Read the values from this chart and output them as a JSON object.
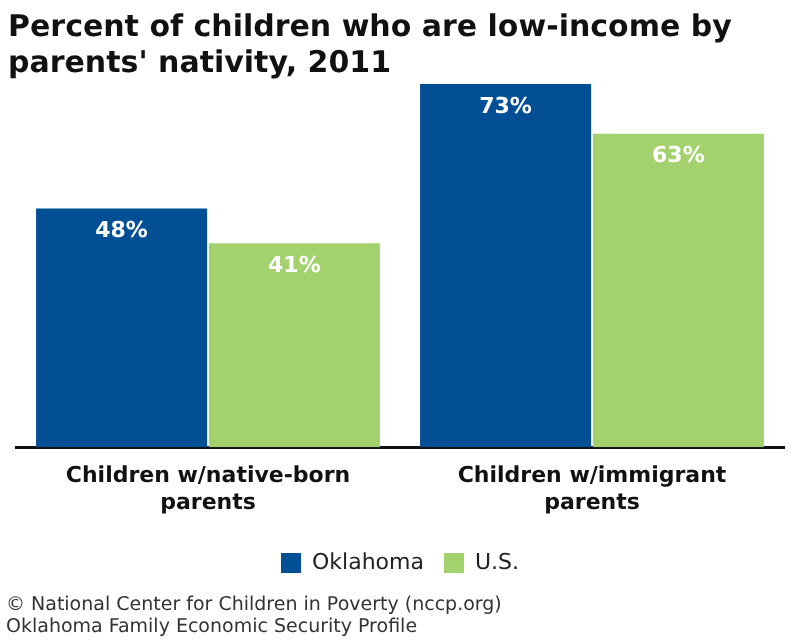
{
  "chart_data": {
    "type": "bar",
    "title": "Percent of children who are low-income by parents' nativity, 2011",
    "categories": [
      "Children w/native-born parents",
      "Children w/immigrant parents"
    ],
    "series": [
      {
        "name": "Oklahoma",
        "color": "#034f96",
        "values": [
          48,
          73
        ],
        "value_labels": [
          "48%",
          "73%"
        ]
      },
      {
        "name": "U.S.",
        "color": "#a3d16e",
        "values": [
          41,
          63
        ],
        "value_labels": [
          "41%",
          "63%"
        ]
      }
    ],
    "tick_labels": "x",
    "grid": false,
    "legend": "bottom",
    "annotations": [
      "© National Center for Children in Poverty (nccp.org)",
      "Oklahoma Family Economic Security Profile"
    ]
  }
}
